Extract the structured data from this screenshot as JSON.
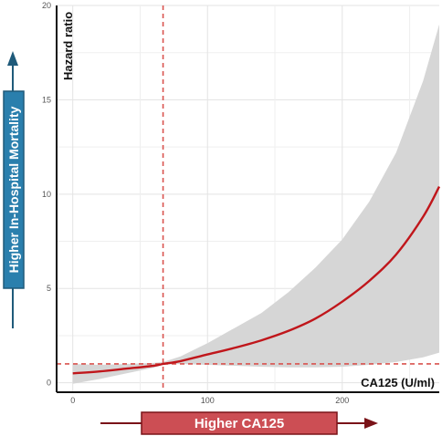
{
  "chart_data": {
    "type": "line",
    "ylabel": "Hazard ratio",
    "xlabel": "CA125 (U/ml)",
    "xlim": [
      -12,
      272
    ],
    "ylim": [
      -0.5,
      20
    ],
    "x_ticks": [
      0,
      100,
      200
    ],
    "y_ticks": [
      0,
      5,
      10,
      15,
      20
    ],
    "grid": true,
    "series": [
      {
        "type": "line",
        "color": "#c0161b",
        "x": [
          0,
          20,
          40,
          60,
          67,
          80,
          100,
          120,
          140,
          160,
          180,
          200,
          220,
          240,
          260,
          272
        ],
        "y": [
          0.5,
          0.6,
          0.75,
          0.9,
          1.0,
          1.15,
          1.5,
          1.85,
          2.25,
          2.75,
          3.4,
          4.3,
          5.4,
          6.8,
          8.8,
          10.4
        ]
      }
    ],
    "confidence_band": {
      "color": "#d6d6d6",
      "x": [
        0,
        20,
        40,
        60,
        67,
        80,
        100,
        120,
        140,
        160,
        180,
        200,
        220,
        240,
        260,
        272
      ],
      "lower": [
        -0.05,
        0.2,
        0.5,
        0.8,
        0.95,
        1.0,
        0.95,
        0.9,
        0.85,
        0.82,
        0.82,
        0.85,
        0.95,
        1.1,
        1.35,
        1.6
      ],
      "upper": [
        1.0,
        0.95,
        1.0,
        1.05,
        1.1,
        1.4,
        2.1,
        2.9,
        3.7,
        4.8,
        6.1,
        7.6,
        9.6,
        12.2,
        16.0,
        19.0
      ]
    },
    "reference_lines": [
      {
        "orientation": "horizontal",
        "value": 1.0,
        "color": "#d9534f",
        "style": "dashed"
      },
      {
        "orientation": "vertical",
        "value": 67,
        "color": "#d9534f",
        "style": "dashed"
      }
    ],
    "annotations": {
      "y_banner": "Higher In-Hospital Mortality",
      "x_banner": "Higher CA125",
      "y_banner_color": "#2a7fad",
      "x_banner_color": "#cc4e54",
      "y_arrow_color": "#1f5a7a",
      "x_arrow_color": "#7a1318"
    }
  }
}
